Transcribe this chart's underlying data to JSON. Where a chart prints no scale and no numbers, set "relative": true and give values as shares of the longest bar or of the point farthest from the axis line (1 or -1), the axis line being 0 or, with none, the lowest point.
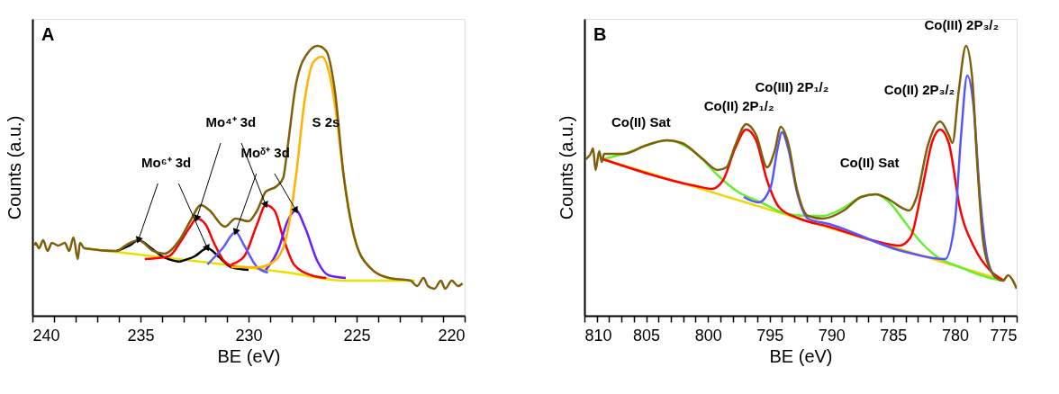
{
  "chart_data": [
    {
      "type": "line",
      "title": "A",
      "xlabel": "BE (eV)",
      "ylabel": "Counts (a.u.)",
      "relative": true,
      "tick_labels": "x",
      "xlim": [
        240,
        220
      ],
      "xticks": [
        240,
        {
          "value": 239,
          "label": null
        },
        {
          "value": 238,
          "label": null
        },
        {
          "value": 237,
          "label": null
        },
        {
          "value": 236,
          "label": null
        },
        235,
        {
          "value": 234,
          "label": null
        },
        {
          "value": 233,
          "label": null
        },
        {
          "value": 232,
          "label": null
        },
        {
          "value": 231,
          "label": null
        },
        230,
        {
          "value": 229,
          "label": null
        },
        {
          "value": 228,
          "label": null
        },
        {
          "value": 227,
          "label": null
        },
        {
          "value": 226,
          "label": null
        },
        225,
        {
          "value": 224,
          "label": null
        },
        {
          "value": 223,
          "label": null
        },
        {
          "value": 222,
          "label": null
        },
        {
          "value": 221,
          "label": null
        },
        220
      ],
      "series": [
        {
          "color": "#e8e000",
          "x": [
            237.6,
            232.2,
            228.2,
            225.5,
            222.3
          ],
          "values": [
            0.25,
            0.2,
            0.16,
            0.13,
            0.13
          ]
        },
        {
          "color": "#000000",
          "x": [
            236.1,
            235.5,
            235.1,
            234.5,
            234.0,
            233.2
          ],
          "values": [
            0.24,
            0.26,
            0.28,
            0.25,
            0.22,
            0.2
          ]
        },
        {
          "color": "#000000",
          "x": [
            233.2,
            232.5,
            231.9,
            231.4,
            230.8,
            230.0
          ],
          "values": [
            0.2,
            0.22,
            0.25,
            0.22,
            0.18,
            0.17
          ]
        },
        {
          "color": "#ff0000",
          "x": [
            234.8,
            233.7,
            233.1,
            232.7,
            232.4,
            232.0,
            231.6,
            231.1,
            230.6
          ],
          "values": [
            0.21,
            0.22,
            0.28,
            0.33,
            0.36,
            0.34,
            0.27,
            0.2,
            0.18
          ]
        },
        {
          "color": "#ff0000",
          "x": [
            230.8,
            230.2,
            229.6,
            229.2,
            228.8,
            228.4,
            227.9,
            227.1,
            226.4
          ],
          "values": [
            0.19,
            0.22,
            0.34,
            0.41,
            0.39,
            0.29,
            0.19,
            0.15,
            0.14
          ]
        },
        {
          "color": "#5a5aff",
          "x": [
            231.9,
            231.2,
            230.6,
            230.2,
            229.6,
            229.1
          ],
          "values": [
            0.19,
            0.25,
            0.31,
            0.26,
            0.18,
            0.16
          ]
        },
        {
          "color": "#6a1cff",
          "x": [
            229.2,
            228.6,
            228.2,
            227.8,
            227.4,
            226.8,
            226.3,
            225.5
          ],
          "values": [
            0.17,
            0.25,
            0.35,
            0.39,
            0.33,
            0.2,
            0.15,
            0.14
          ]
        },
        {
          "color": "#ffb300",
          "x": [
            230.8,
            229.5,
            228.7,
            228.2,
            227.8,
            227.4,
            227.0,
            226.6,
            226.3,
            226.0,
            225.6,
            225.1,
            224.4,
            223.5
          ],
          "values": [
            0.18,
            0.18,
            0.21,
            0.31,
            0.52,
            0.8,
            0.94,
            0.96,
            0.91,
            0.78,
            0.52,
            0.29,
            0.18,
            0.14
          ]
        },
        {
          "color": "#7f5f0a",
          "x": [
            239.9,
            239.85,
            239.7,
            239.5,
            239.3,
            239.1,
            238.8,
            238.5,
            238.3,
            238.1,
            237.9,
            237.8,
            237.6,
            236.1,
            235.7,
            235.1,
            234.4,
            233.9,
            233.2,
            232.7,
            232.2,
            231.8,
            231.1,
            230.6,
            230.0,
            229.6,
            229.2,
            228.7,
            228.4,
            228.2,
            227.8,
            227.2,
            226.8,
            226.4,
            226.0,
            225.6,
            225.1,
            224.4,
            223.5,
            222.5,
            222.2,
            221.9,
            221.7,
            221.4,
            221.1,
            220.9,
            220.6,
            220.3,
            220.1
          ],
          "values": [
            0.26,
            0.27,
            0.25,
            0.28,
            0.24,
            0.27,
            0.26,
            0.27,
            0.24,
            0.29,
            0.21,
            0.27,
            0.25,
            0.24,
            0.26,
            0.28,
            0.24,
            0.23,
            0.28,
            0.35,
            0.41,
            0.39,
            0.33,
            0.36,
            0.35,
            0.39,
            0.46,
            0.48,
            0.51,
            0.62,
            0.86,
            0.98,
            1.0,
            0.98,
            0.83,
            0.52,
            0.29,
            0.18,
            0.14,
            0.13,
            0.11,
            0.14,
            0.11,
            0.1,
            0.13,
            0.1,
            0.13,
            0.11,
            0.12
          ]
        }
      ],
      "annotations": [
        {
          "text": "Mo⁶⁺ 3d",
          "x": 235.1,
          "y": 0.28
        },
        {
          "text": "Mo⁴⁺ 3d",
          "x": 232.4,
          "y": 0.36
        },
        {
          "text": "Moᵟ⁺ 3d",
          "x": 230.6,
          "y": 0.31
        },
        "S 2s"
      ]
    },
    {
      "type": "line",
      "title": "B",
      "xlabel": "BE (eV)",
      "ylabel": "Counts (a.u.)",
      "relative": true,
      "tick_labels": "x",
      "xlim": [
        810,
        775
      ],
      "xticks": [
        810,
        {
          "value": 809,
          "label": null
        },
        {
          "value": 808,
          "label": null
        },
        {
          "value": 807,
          "label": null
        },
        {
          "value": 806,
          "label": null
        },
        805,
        {
          "value": 804,
          "label": null
        },
        {
          "value": 803,
          "label": null
        },
        {
          "value": 802,
          "label": null
        },
        {
          "value": 801,
          "label": null
        },
        800,
        {
          "value": 799,
          "label": null
        },
        {
          "value": 798,
          "label": null
        },
        {
          "value": 797,
          "label": null
        },
        {
          "value": 796,
          "label": null
        },
        795,
        {
          "value": 794,
          "label": null
        },
        {
          "value": 793,
          "label": null
        },
        {
          "value": 792,
          "label": null
        },
        {
          "value": 791,
          "label": null
        },
        790,
        {
          "value": 789,
          "label": null
        },
        {
          "value": 788,
          "label": null
        },
        {
          "value": 787,
          "label": null
        },
        {
          "value": 786,
          "label": null
        },
        785,
        {
          "value": 784,
          "label": null
        },
        {
          "value": 783,
          "label": null
        },
        {
          "value": 782,
          "label": null
        },
        {
          "value": 781,
          "label": null
        },
        780,
        {
          "value": 779,
          "label": null
        },
        {
          "value": 778,
          "label": null
        },
        {
          "value": 777,
          "label": null
        },
        {
          "value": 776,
          "label": null
        },
        775
      ],
      "series": [
        {
          "color": "#f2d500",
          "x": [
            808.5,
            776.0
          ],
          "values": [
            0.58,
            0.13
          ]
        },
        {
          "color": "#66ee33",
          "x": [
            808.5,
            806.8,
            803.3,
            800.9,
            799.2,
            797.6,
            795.7,
            793.8,
            791.9,
            790.7,
            789.0,
            787.6,
            786.4,
            785.3,
            784.1,
            782.9,
            781.5,
            779.6,
            777.2,
            776.0
          ],
          "values": [
            0.58,
            0.6,
            0.65,
            0.6,
            0.52,
            0.46,
            0.42,
            0.38,
            0.37,
            0.37,
            0.4,
            0.44,
            0.45,
            0.42,
            0.35,
            0.28,
            0.22,
            0.18,
            0.14,
            0.13
          ]
        },
        {
          "color": "#ff0000",
          "x": [
            808.5,
            800.9,
            799.7,
            798.8,
            797.8,
            796.9,
            796.1,
            795.2,
            794.2,
            792.6,
            790.2,
            786.7,
            784.5,
            783.6,
            782.7,
            781.8,
            781.2,
            780.5,
            779.6,
            778.4,
            777.2,
            776.0
          ],
          "values": [
            0.58,
            0.48,
            0.47,
            0.5,
            0.62,
            0.69,
            0.65,
            0.5,
            0.4,
            0.36,
            0.33,
            0.28,
            0.26,
            0.29,
            0.46,
            0.65,
            0.69,
            0.64,
            0.4,
            0.25,
            0.17,
            0.13
          ]
        },
        {
          "color": "#5555ff",
          "x": [
            797.1,
            795.9,
            794.9,
            794.4,
            794.0,
            793.5,
            792.8,
            791.9,
            790.2,
            784.3,
            780.8,
            780.0,
            779.5,
            779.0,
            778.5,
            778.0,
            777.4,
            776.7
          ],
          "values": [
            0.44,
            0.42,
            0.48,
            0.61,
            0.68,
            0.62,
            0.46,
            0.36,
            0.34,
            0.24,
            0.21,
            0.35,
            0.67,
            0.89,
            0.78,
            0.46,
            0.22,
            0.14
          ]
        },
        {
          "color": "#7f5f0a",
          "x": [
            809.9,
            809.5,
            809.3,
            809.1,
            808.8,
            808.6,
            808.4,
            806.8,
            805.1,
            803.3,
            802.1,
            800.4,
            799.2,
            798.5,
            797.8,
            796.9,
            796.1,
            795.2,
            794.6,
            794.1,
            793.5,
            792.8,
            791.9,
            790.7,
            789.0,
            787.6,
            786.4,
            785.3,
            784.3,
            783.7,
            783.1,
            782.2,
            781.2,
            780.5,
            780.2,
            779.7,
            779.1,
            778.6,
            778.2,
            777.7,
            777.0,
            776.1,
            775.7,
            775.3,
            775.0
          ],
          "values": [
            0.58,
            0.6,
            0.62,
            0.54,
            0.61,
            0.57,
            0.6,
            0.6,
            0.63,
            0.65,
            0.64,
            0.58,
            0.54,
            0.55,
            0.63,
            0.71,
            0.67,
            0.55,
            0.61,
            0.7,
            0.64,
            0.47,
            0.37,
            0.36,
            0.39,
            0.44,
            0.45,
            0.43,
            0.4,
            0.39,
            0.44,
            0.63,
            0.72,
            0.67,
            0.64,
            0.83,
            1.0,
            0.88,
            0.57,
            0.27,
            0.16,
            0.13,
            0.15,
            0.13,
            0.1
          ]
        }
      ],
      "annotations": [
        {
          "text": "Co(II) Sat",
          "x": 803.3,
          "y": 0.65
        },
        {
          "text": "Co(II) 2P₁/₂",
          "x": 796.9,
          "y": 0.71
        },
        "Co(III) 2P₁/₂",
        {
          "text": "Co(II) Sat",
          "x": 786.4,
          "y": 0.45
        },
        {
          "text": "Co(II) 2P₃/₂",
          "x": 781.2,
          "y": 0.72
        },
        {
          "text": "Co(III) 2P₃/₂",
          "x": 779.1,
          "y": 1.0
        }
      ]
    }
  ]
}
